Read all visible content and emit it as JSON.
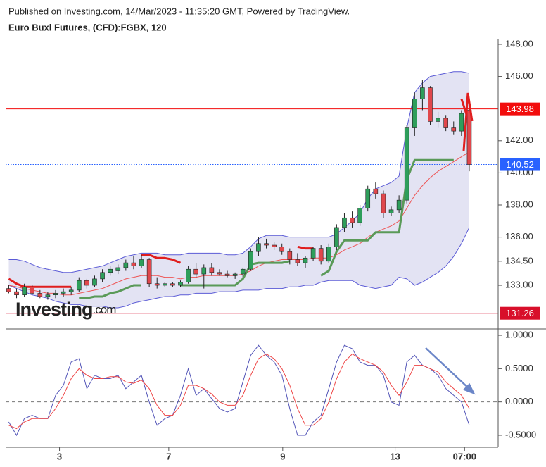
{
  "chart_data": [
    {
      "type": "candlestick",
      "subtitle": "Published on Investing.com, 14/Mar/2023 - 11:35:20 GMT, Powered by TradingView.",
      "title": "Euro Buxl Futures, (CFD):FGBX, 120",
      "watermark": "Investing",
      "watermark_suffix": ".com",
      "ylim": [
        130.37,
        148.35
      ],
      "yticks": [
        {
          "value": 148,
          "label": "148.00"
        },
        {
          "value": 146,
          "label": "146.00"
        },
        {
          "value": 142,
          "label": "142.00"
        },
        {
          "value": 140,
          "label": "140.00"
        },
        {
          "value": 138,
          "label": "138.00"
        },
        {
          "value": 136,
          "label": "136.00"
        },
        {
          "value": 134.5,
          "label": "134.50"
        },
        {
          "value": 133,
          "label": "133.00"
        }
      ],
      "xlim": [
        -0.4,
        62.7
      ],
      "up_color": "#2e9e5b",
      "down_color": "#e0474c",
      "open": [
        132.8,
        132.6,
        132.4,
        132.9,
        132.5,
        132.3,
        132.4,
        132.5,
        132.6,
        132.7,
        133.3,
        133.0,
        133.4,
        133.8,
        133.9,
        134.1,
        134.4,
        134.2,
        134.6,
        133.1,
        133.0,
        133.1,
        133.0,
        133.2,
        134.0,
        133.7,
        134.1,
        133.8,
        133.7,
        133.6,
        133.7,
        134.0,
        135.1,
        135.6,
        135.5,
        135.4,
        135.1,
        134.6,
        134.4,
        134.7,
        135.3,
        134.5,
        135.4,
        136.6,
        137.2,
        136.9,
        137.8,
        139.0,
        138.7,
        137.5,
        137.7,
        138.3,
        142.8,
        144.6,
        145.3,
        143.2,
        143.4,
        142.8,
        142.6,
        143.9
      ],
      "high": [
        133.0,
        132.8,
        133.1,
        133.0,
        132.7,
        132.6,
        132.7,
        132.8,
        132.9,
        133.5,
        133.4,
        133.6,
        134.0,
        134.2,
        134.3,
        134.6,
        134.8,
        134.9,
        134.7,
        133.5,
        133.2,
        133.2,
        133.3,
        134.2,
        134.4,
        134.3,
        134.4,
        134.0,
        133.9,
        133.8,
        134.1,
        135.3,
        136.0,
        135.9,
        135.7,
        135.6,
        135.3,
        135.0,
        134.8,
        135.4,
        135.5,
        135.6,
        136.8,
        137.5,
        137.6,
        138.0,
        139.2,
        139.4,
        138.9,
        137.9,
        138.6,
        143.0,
        145.0,
        145.8,
        145.4,
        143.8,
        143.6,
        143.2,
        143.9,
        144.2
      ],
      "low": [
        132.5,
        132.2,
        132.3,
        132.4,
        132.2,
        132.1,
        132.2,
        132.3,
        132.4,
        132.6,
        132.8,
        132.9,
        133.2,
        133.6,
        133.7,
        133.9,
        134.0,
        134.1,
        132.9,
        132.8,
        132.9,
        132.9,
        132.9,
        133.1,
        133.5,
        132.8,
        133.6,
        133.6,
        133.5,
        133.4,
        133.5,
        133.9,
        134.8,
        135.3,
        135.2,
        134.9,
        134.3,
        134.2,
        134.1,
        134.5,
        134.3,
        134.4,
        135.2,
        136.3,
        136.6,
        136.7,
        137.6,
        138.4,
        137.2,
        137.3,
        137.5,
        138.1,
        142.3,
        143.9,
        143.0,
        142.8,
        142.6,
        142.4,
        142.3,
        140.1
      ],
      "close": [
        132.6,
        132.4,
        132.9,
        132.5,
        132.3,
        132.4,
        132.5,
        132.6,
        132.7,
        133.3,
        133.0,
        133.4,
        133.8,
        134.0,
        134.1,
        134.4,
        134.2,
        134.6,
        133.1,
        133.0,
        133.1,
        133.0,
        133.2,
        134.0,
        133.7,
        134.1,
        133.8,
        133.7,
        133.6,
        133.7,
        134.0,
        135.1,
        135.6,
        135.5,
        135.4,
        135.1,
        134.6,
        134.4,
        134.7,
        135.3,
        134.5,
        135.4,
        136.6,
        137.2,
        136.9,
        137.8,
        139.0,
        138.7,
        137.5,
        137.7,
        138.3,
        142.8,
        144.6,
        145.3,
        143.2,
        143.4,
        142.8,
        142.6,
        143.7,
        140.52
      ],
      "band_color": "#5b5bd6",
      "band_fill": "#e3e3f3",
      "band_upper": [
        134.6,
        134.6,
        134.5,
        134.3,
        134.1,
        134.0,
        133.9,
        133.8,
        133.8,
        133.9,
        134.0,
        134.1,
        134.2,
        134.4,
        134.6,
        134.8,
        134.9,
        135.0,
        135.0,
        135.0,
        134.9,
        134.9,
        134.9,
        135.0,
        135.0,
        135.0,
        135.0,
        135.0,
        134.9,
        134.9,
        135.0,
        135.4,
        135.9,
        136.1,
        136.1,
        136.1,
        136.0,
        136.0,
        136.0,
        136.0,
        136.0,
        136.0,
        136.2,
        136.6,
        137.0,
        137.5,
        138.4,
        139.0,
        139.2,
        139.4,
        139.8,
        142.8,
        145.0,
        145.6,
        146.0,
        146.1,
        146.2,
        146.3,
        146.3,
        146.2
      ],
      "band_mid": [
        133.0,
        132.9,
        132.8,
        132.7,
        132.6,
        132.5,
        132.5,
        132.4,
        132.4,
        132.5,
        132.6,
        132.7,
        132.8,
        133.0,
        133.2,
        133.4,
        133.5,
        133.6,
        133.6,
        133.6,
        133.5,
        133.5,
        133.4,
        133.5,
        133.5,
        133.6,
        133.6,
        133.6,
        133.6,
        133.6,
        133.7,
        133.9,
        134.2,
        134.4,
        134.5,
        134.6,
        134.6,
        134.6,
        134.6,
        134.7,
        134.7,
        134.7,
        134.9,
        135.2,
        135.4,
        135.6,
        136.0,
        136.3,
        136.5,
        136.7,
        137.0,
        137.8,
        138.6,
        139.2,
        139.7,
        140.1,
        140.4,
        140.7,
        141.0,
        141.3
      ],
      "band_lower": [
        133.0,
        132.8,
        132.6,
        132.4,
        132.3,
        132.2,
        132.0,
        131.9,
        131.8,
        131.8,
        131.7,
        131.7,
        131.7,
        131.6,
        131.6,
        131.7,
        131.9,
        132.0,
        132.1,
        132.2,
        132.3,
        132.3,
        132.4,
        132.4,
        132.5,
        132.5,
        132.5,
        132.6,
        132.6,
        132.6,
        132.7,
        132.7,
        132.7,
        132.8,
        132.8,
        132.8,
        132.9,
        132.9,
        133.0,
        133.0,
        133.2,
        133.3,
        133.3,
        133.3,
        133.3,
        133.0,
        132.9,
        132.8,
        132.9,
        133.0,
        133.5,
        133.4,
        133.0,
        133.2,
        133.5,
        133.8,
        134.2,
        134.8,
        135.6,
        136.6
      ],
      "stops": [
        {
          "color": "#e01e1e",
          "values": [
            133.4,
            133.1,
            132.9,
            132.9,
            132.9,
            132.9,
            132.9,
            132.9,
            132.9,
            null,
            null,
            null,
            null,
            null,
            null,
            null,
            null,
            134.9,
            134.9,
            134.7,
            134.7,
            134.6,
            134.4,
            null,
            null,
            null,
            null,
            null,
            null,
            null,
            null,
            null,
            null,
            null,
            null,
            null,
            null,
            135.4,
            135.3,
            135.3,
            null,
            null,
            null,
            null,
            null,
            null,
            null,
            null,
            null,
            null,
            null,
            null,
            null,
            null,
            null,
            null,
            null,
            null,
            144.6,
            143.1
          ]
        },
        {
          "color": "#5a9a58",
          "values": [
            null,
            null,
            null,
            null,
            null,
            null,
            null,
            null,
            null,
            132.2,
            132.2,
            132.3,
            132.3,
            132.5,
            132.6,
            132.8,
            133.0,
            133.0,
            null,
            null,
            null,
            null,
            133.0,
            133.0,
            133.0,
            133.0,
            133.0,
            133.0,
            133.0,
            133.0,
            133.4,
            134.3,
            134.4,
            134.4,
            134.4,
            134.4,
            134.5,
            null,
            null,
            null,
            133.6,
            133.9,
            135.1,
            135.8,
            135.8,
            135.8,
            135.8,
            136.3,
            136.3,
            136.3,
            136.3,
            139.6,
            140.8,
            140.8,
            140.8,
            140.8,
            140.8,
            140.8,
            null,
            null
          ]
        }
      ],
      "markers": [
        {
          "value": 143.98,
          "color": "#f20d0d",
          "style": "solid"
        },
        {
          "value": 140.52,
          "color": "#2962ff",
          "style": "dotted"
        },
        {
          "value": 131.26,
          "color": "#d80f2a",
          "style": "solid"
        }
      ]
    },
    {
      "type": "line",
      "ylim": [
        -0.68,
        1.085
      ],
      "yticks": [
        {
          "value": 1,
          "label": "1.0000"
        },
        {
          "value": 0.5,
          "label": "0.5000"
        },
        {
          "value": 0,
          "label": "0.0000"
        },
        {
          "value": -0.5,
          "label": "-0.5000"
        }
      ],
      "xlim": [
        -0.4,
        62.7
      ],
      "xticks": [
        {
          "value": 6.5,
          "label": "3"
        },
        {
          "value": 20.5,
          "label": "7"
        },
        {
          "value": 35.1,
          "label": "9"
        },
        {
          "value": 49.5,
          "label": "13"
        },
        {
          "value": 58.4,
          "label": "07:00"
        }
      ],
      "zero_line": 0,
      "series": [
        {
          "color": "#5456b8",
          "values": [
            -0.3,
            -0.5,
            -0.25,
            -0.2,
            -0.25,
            -0.25,
            0.1,
            0.25,
            0.6,
            0.65,
            0.2,
            0.4,
            0.35,
            0.35,
            0.4,
            0.2,
            0.3,
            0.4,
            0.0,
            -0.35,
            -0.25,
            -0.2,
            0.1,
            0.5,
            0.1,
            0.2,
            0.05,
            -0.1,
            -0.15,
            -0.1,
            0.3,
            0.7,
            0.85,
            0.7,
            0.6,
            0.4,
            -0.1,
            -0.5,
            -0.5,
            -0.3,
            -0.2,
            0.2,
            0.6,
            0.85,
            0.8,
            0.6,
            0.55,
            0.55,
            0.4,
            0.0,
            -0.05,
            0.6,
            0.7,
            0.55,
            0.5,
            0.4,
            0.2,
            0.1,
            0.0,
            -0.35
          ]
        },
        {
          "color": "#ee4444",
          "values": [
            -0.35,
            -0.4,
            -0.3,
            -0.25,
            -0.25,
            -0.25,
            -0.1,
            0.1,
            0.35,
            0.5,
            0.4,
            0.35,
            0.35,
            0.38,
            0.38,
            0.3,
            0.28,
            0.33,
            0.2,
            -0.05,
            -0.2,
            -0.2,
            -0.05,
            0.25,
            0.25,
            0.2,
            0.12,
            0.0,
            -0.05,
            -0.05,
            0.1,
            0.4,
            0.65,
            0.72,
            0.65,
            0.5,
            0.25,
            -0.1,
            -0.35,
            -0.35,
            -0.25,
            0.0,
            0.35,
            0.6,
            0.72,
            0.65,
            0.6,
            0.55,
            0.45,
            0.25,
            0.1,
            0.3,
            0.55,
            0.55,
            0.5,
            0.45,
            0.3,
            0.2,
            0.1,
            -0.1
          ]
        }
      ]
    }
  ]
}
